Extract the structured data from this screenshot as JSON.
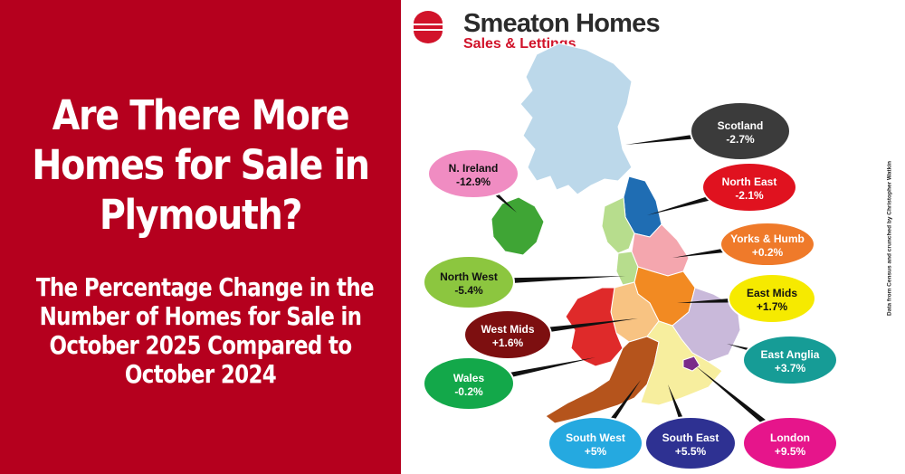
{
  "headline": [
    "Are There More",
    "Homes for Sale in",
    "Plymouth?"
  ],
  "subheadline": [
    "The Percentage Change in the",
    "Number of Homes for Sale in",
    "October 2025 Compared to",
    "October 2024"
  ],
  "brand": {
    "name": "Smeaton Homes",
    "tagline": "Sales & Lettings",
    "accent_color": "#d1132a",
    "panel_color": "#b5001e"
  },
  "credit": "Data from Census and crunched by Christopher Watkin",
  "regions": [
    {
      "name": "Scotland",
      "value": "-2.7%",
      "color": "#3b3b3b",
      "region_color": "#bcd8ea"
    },
    {
      "name": "North East",
      "value": "-2.1%",
      "color": "#e0121f",
      "region_color": "#1f6db3"
    },
    {
      "name": "N. Ireland",
      "value": "-12.9%",
      "color": "#f08cc2",
      "region_color": "#3fa535"
    },
    {
      "name": "Yorks & Humb",
      "value": "+0.2%",
      "color": "#ef7a2a",
      "region_color": "#f4a6ae"
    },
    {
      "name": "North West",
      "value": "-5.4%",
      "color": "#8cc63f",
      "region_color": "#b7dd8d"
    },
    {
      "name": "East Mids",
      "value": "+1.7%",
      "color": "#f6ea00",
      "region_color": "#f28a22"
    },
    {
      "name": "West Mids",
      "value": "+1.6%",
      "color": "#7d0f10",
      "region_color": "#f8c382"
    },
    {
      "name": "East Anglia",
      "value": "+3.7%",
      "color": "#169c96",
      "region_color": "#c9b9da"
    },
    {
      "name": "Wales",
      "value": "-0.2%",
      "color": "#13a84a",
      "region_color": "#df2a2a"
    },
    {
      "name": "South West",
      "value": "+5%",
      "color": "#25a9e0",
      "region_color": "#b5541c"
    },
    {
      "name": "South East",
      "value": "+5.5%",
      "color": "#2e3192",
      "region_color": "#f7ee9e"
    },
    {
      "name": "London",
      "value": "+9.5%",
      "color": "#e6158b",
      "region_color": "#7a2a8a"
    }
  ]
}
